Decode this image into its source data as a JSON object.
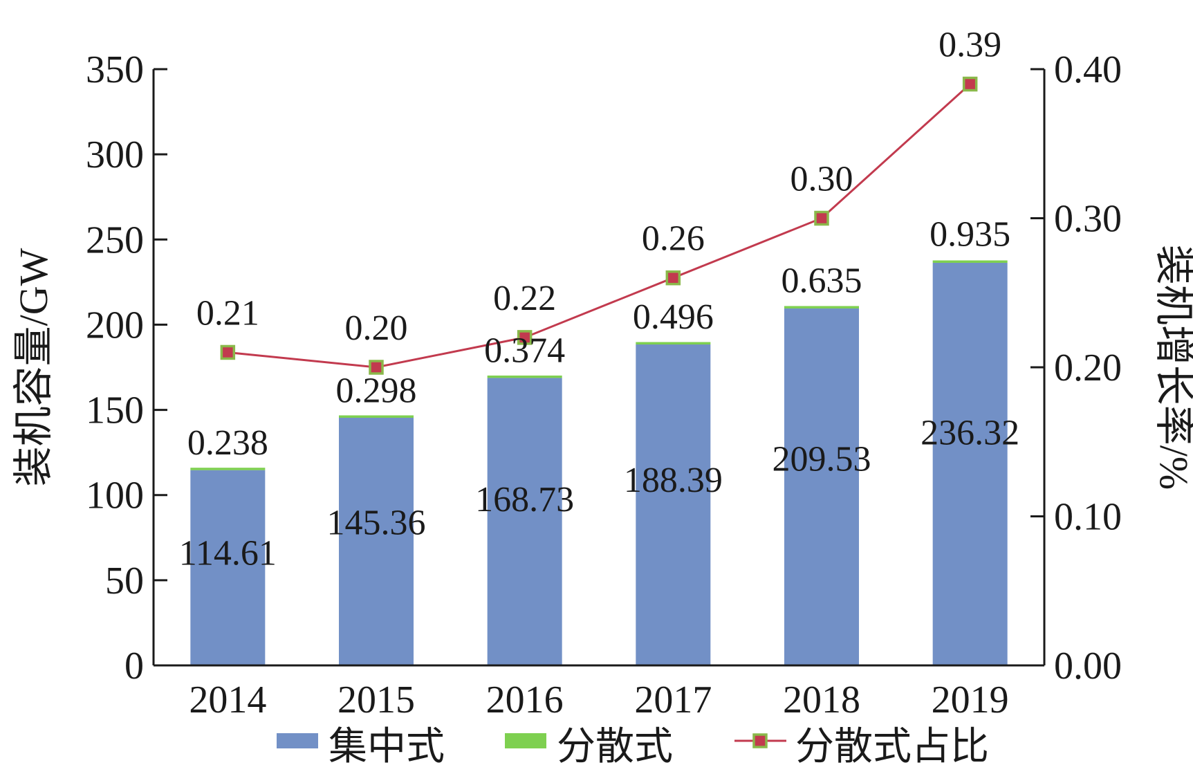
{
  "chart_data": {
    "type": "bar",
    "stacked": true,
    "categories": [
      "2014",
      "2015",
      "2016",
      "2017",
      "2018",
      "2019"
    ],
    "series": [
      {
        "name": "集中式",
        "type": "bar",
        "axis": "left",
        "color": "#7290c6",
        "values": [
          114.61,
          145.36,
          168.73,
          188.39,
          209.53,
          236.32
        ],
        "labels": [
          "114.61",
          "145.36",
          "168.73",
          "188.39",
          "209.53",
          "236.32"
        ]
      },
      {
        "name": "分散式",
        "type": "bar",
        "axis": "left",
        "color": "#7ed050",
        "values": [
          0.238,
          0.298,
          0.374,
          0.496,
          0.635,
          0.935
        ],
        "labels": [
          "0.238",
          "0.298",
          "0.374",
          "0.496",
          "0.635",
          "0.935"
        ]
      },
      {
        "name": "分散式占比",
        "type": "line",
        "axis": "right",
        "color": "#c23a4e",
        "marker_edge": "#8ab84a",
        "values": [
          0.21,
          0.2,
          0.22,
          0.26,
          0.3,
          0.39
        ],
        "labels": [
          "0.21",
          "0.20",
          "0.22",
          "0.26",
          "0.30",
          "0.39"
        ]
      }
    ],
    "ylabel": "装机容量/GW",
    "ylim": [
      0,
      350
    ],
    "yticks": [
      "0",
      "50",
      "100",
      "150",
      "200",
      "250",
      "300",
      "350"
    ],
    "y2label": "装机增长率/%",
    "y2lim": [
      0,
      0.4
    ],
    "y2ticks": [
      "0.00",
      "0.10",
      "0.20",
      "0.30",
      "0.40"
    ],
    "grid": false,
    "legend": "bottom"
  }
}
